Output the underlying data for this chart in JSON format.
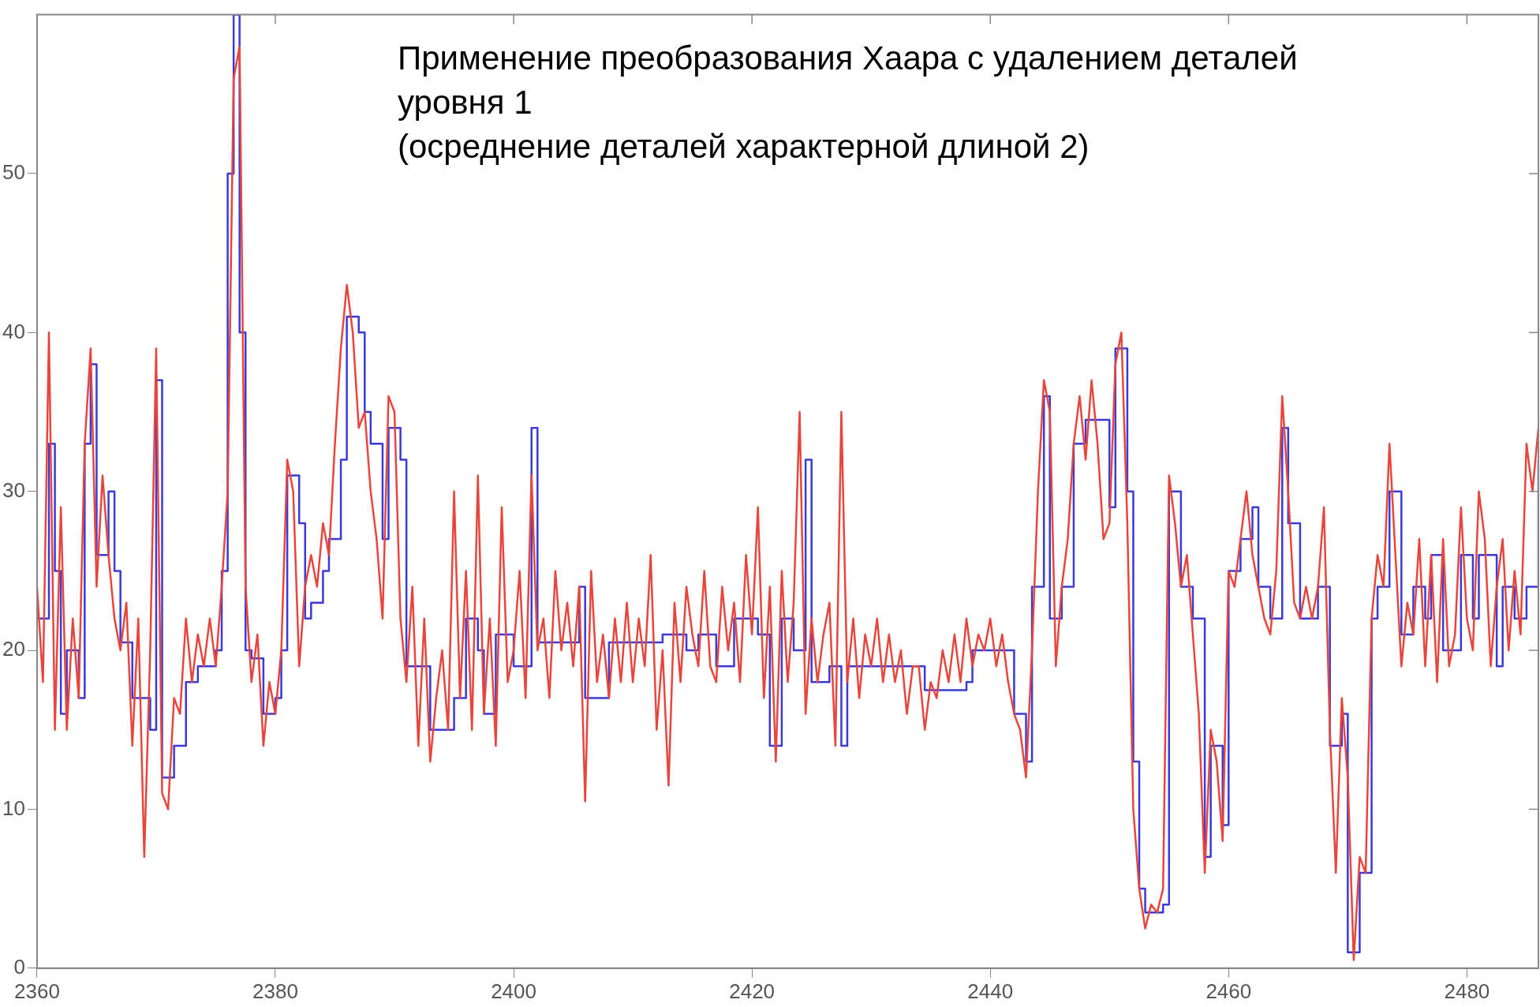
{
  "chart_data": {
    "type": "line",
    "title": "Применение преобразования Хаара с удалением деталей\nуровня 1\n(осреднение деталей характерной длиной 2)",
    "xlim": [
      2360,
      2486
    ],
    "xticks": [
      2360,
      2380,
      2400,
      2420,
      2440,
      2460,
      2480
    ],
    "ylim": [
      0,
      60
    ],
    "yticks": [
      0,
      10,
      20,
      30,
      40,
      50
    ],
    "grid": false,
    "legend": false,
    "marker": "none",
    "series": [
      {
        "color": "#e8453c",
        "x": [
          2360,
          2360.5,
          2361,
          2361.5,
          2362,
          2362.5,
          2363,
          2363.5,
          2364,
          2364.5,
          2365,
          2365.5,
          2366,
          2366.5,
          2367,
          2367.5,
          2368,
          2368.5,
          2369,
          2369.5,
          2370,
          2370.5,
          2371,
          2371.5,
          2372,
          2372.5,
          2373,
          2373.5,
          2374,
          2374.5,
          2375,
          2375.5,
          2376,
          2376.5,
          2377,
          2377.5,
          2378,
          2378.5,
          2379,
          2379.5,
          2380,
          2380.5,
          2381,
          2381.5,
          2382,
          2382.5,
          2383,
          2383.5,
          2384,
          2384.5,
          2385,
          2385.5,
          2386,
          2386.5,
          2387,
          2387.5,
          2388,
          2388.5,
          2389,
          2389.5,
          2390,
          2390.5,
          2391,
          2391.5,
          2392,
          2392.5,
          2393,
          2393.5,
          2394,
          2394.5,
          2395,
          2395.5,
          2396,
          2396.5,
          2397,
          2397.5,
          2398,
          2398.5,
          2399,
          2399.5,
          2400,
          2400.5,
          2401,
          2401.5,
          2402,
          2402.5,
          2403,
          2403.5,
          2404,
          2404.5,
          2405,
          2405.5,
          2406,
          2406.5,
          2407,
          2407.5,
          2408,
          2408.5,
          2409,
          2409.5,
          2410,
          2410.5,
          2411,
          2411.5,
          2412,
          2412.5,
          2413,
          2413.5,
          2414,
          2414.5,
          2415,
          2415.5,
          2416,
          2416.5,
          2417,
          2417.5,
          2418,
          2418.5,
          2419,
          2419.5,
          2420,
          2420.5,
          2421,
          2421.5,
          2422,
          2422.5,
          2423,
          2423.5,
          2424,
          2424.5,
          2425,
          2425.5,
          2426,
          2426.5,
          2427,
          2427.5,
          2428,
          2428.5,
          2429,
          2429.5,
          2430,
          2430.5,
          2431,
          2431.5,
          2432,
          2432.5,
          2433,
          2433.5,
          2434,
          2434.5,
          2435,
          2435.5,
          2436,
          2436.5,
          2437,
          2437.5,
          2438,
          2438.5,
          2439,
          2439.5,
          2440,
          2440.5,
          2441,
          2441.5,
          2442,
          2442.5,
          2443,
          2443.5,
          2444,
          2444.5,
          2445,
          2445.5,
          2446,
          2446.5,
          2447,
          2447.5,
          2448,
          2448.5,
          2449,
          2449.5,
          2450,
          2450.5,
          2451,
          2451.5,
          2452,
          2452.5,
          2453,
          2453.5,
          2454,
          2454.5,
          2455,
          2455.5,
          2456,
          2456.5,
          2457,
          2457.5,
          2458,
          2458.5,
          2459,
          2459.5,
          2460,
          2460.5,
          2461,
          2461.5,
          2462,
          2462.5,
          2463,
          2463.5,
          2464,
          2464.5,
          2465,
          2465.5,
          2466,
          2466.5,
          2467,
          2467.5,
          2468,
          2468.5,
          2469,
          2469.5,
          2470,
          2470.5,
          2471,
          2471.5,
          2472,
          2472.5,
          2473,
          2473.5,
          2474,
          2474.5,
          2475,
          2475.5,
          2476,
          2476.5,
          2477,
          2477.5,
          2478,
          2478.5,
          2479,
          2479.5,
          2480,
          2480.5,
          2481,
          2481.5,
          2482,
          2482.5,
          2483,
          2483.5,
          2484,
          2484.5,
          2485,
          2485.5,
          2486
        ],
        "values": [
          24,
          18,
          40,
          15,
          29,
          15,
          22,
          17,
          33,
          39,
          24,
          31,
          26,
          22,
          20,
          23,
          14,
          22,
          7,
          20,
          39,
          11,
          10,
          17,
          16,
          22,
          18,
          21,
          19,
          22,
          19,
          24,
          30,
          56,
          58,
          24,
          18,
          21,
          14,
          18,
          16,
          20,
          32,
          30,
          19,
          24,
          26,
          24,
          28,
          26,
          33,
          39,
          43,
          40,
          34,
          35,
          30,
          27,
          22,
          36,
          35,
          22,
          18,
          24,
          14,
          22,
          13,
          17,
          20,
          15,
          30,
          17,
          25,
          15,
          31,
          16,
          22,
          14,
          29,
          18,
          20,
          25,
          17,
          31,
          20,
          22,
          17,
          25,
          20,
          23,
          19,
          24,
          10.5,
          25,
          18,
          21,
          17,
          22,
          18,
          23,
          18,
          22,
          19,
          26,
          15,
          20,
          11.5,
          23,
          18,
          24,
          21,
          19,
          25,
          19,
          18,
          24,
          20,
          23,
          18,
          26,
          21,
          29,
          17,
          24,
          13,
          25,
          18,
          23,
          35,
          16,
          22,
          18,
          21,
          23,
          14,
          35,
          18,
          22,
          17,
          21,
          19,
          22,
          18,
          21,
          18,
          20,
          16,
          19,
          19,
          15,
          18,
          17,
          20,
          18,
          21,
          18,
          22,
          19,
          21,
          20,
          22,
          19,
          21,
          18,
          16,
          15,
          12,
          20,
          30,
          37,
          35,
          19,
          24,
          27,
          33,
          36,
          32,
          37,
          33,
          27,
          28,
          38,
          40,
          28,
          10,
          5,
          2.5,
          4,
          3.5,
          5,
          31,
          28,
          24,
          26,
          21,
          16,
          6,
          15,
          13,
          8,
          25,
          24,
          27,
          30,
          26,
          24,
          22,
          21,
          25,
          36,
          30,
          23,
          22,
          24,
          22,
          24,
          29,
          15,
          6,
          17,
          12,
          0.5,
          7,
          6,
          22,
          26,
          24,
          33,
          26,
          19,
          23,
          21,
          27,
          19,
          26,
          18,
          27,
          19,
          21,
          29,
          22,
          20,
          30,
          27,
          19,
          24,
          27,
          20,
          25,
          21,
          33,
          30,
          34
        ]
      },
      {
        "color": "#3a3ad8",
        "type": "step",
        "x": [
          2360,
          2361,
          2361.5,
          2362,
          2362.5,
          2363.5,
          2364,
          2364.5,
          2365,
          2366,
          2366.5,
          2367,
          2368,
          2369.5,
          2370,
          2370.5,
          2371.5,
          2372.5,
          2373.5,
          2375,
          2375.5,
          2376,
          2376.5,
          2377,
          2377.5,
          2378,
          2379,
          2380,
          2380.5,
          2381,
          2382,
          2382.5,
          2383,
          2384,
          2384.5,
          2385.5,
          2386,
          2387,
          2387.5,
          2388,
          2389,
          2389.5,
          2390.5,
          2391,
          2392.5,
          2393,
          2395,
          2396,
          2397,
          2397.5,
          2398.5,
          2400,
          2401.5,
          2402,
          2404,
          2405.5,
          2406,
          2408,
          2410.5,
          2412.5,
          2414.5,
          2415.5,
          2417,
          2418.5,
          2420.5,
          2421.5,
          2422.5,
          2423.5,
          2424.5,
          2425,
          2426.5,
          2427.5,
          2428,
          2431,
          2434.5,
          2438,
          2438.5,
          2441.5,
          2442,
          2443,
          2443.5,
          2444.5,
          2445,
          2446,
          2447,
          2448,
          2449,
          2450,
          2450.5,
          2451.5,
          2452,
          2452.5,
          2453,
          2454.5,
          2455,
          2456,
          2457,
          2458,
          2458.5,
          2459.5,
          2460,
          2461,
          2462,
          2462.5,
          2463.5,
          2464.5,
          2465,
          2466,
          2467.5,
          2468.5,
          2469.5,
          2470,
          2471,
          2472,
          2472.5,
          2473.5,
          2474.5,
          2475.5,
          2476.5,
          2477,
          2478,
          2479.5,
          2480.5,
          2481,
          2482.5,
          2483,
          2484,
          2485,
          2486
        ],
        "values": [
          22,
          33,
          25,
          16,
          20,
          17,
          33,
          38,
          26,
          30,
          25,
          20.5,
          17,
          15,
          37,
          12,
          14,
          18,
          19,
          20,
          25,
          50,
          60,
          40,
          20,
          19.5,
          16,
          17,
          20,
          31,
          28,
          22,
          23,
          25,
          27,
          32,
          41,
          40,
          35,
          33,
          27,
          34,
          32,
          19,
          19,
          15,
          17,
          22,
          20,
          16,
          21,
          19,
          34,
          20.5,
          20.5,
          24,
          17,
          20.5,
          20.5,
          21,
          20,
          21,
          19,
          22,
          21,
          14,
          22,
          20,
          32,
          18,
          19,
          14,
          19,
          19,
          17.5,
          18,
          20,
          20,
          16,
          13,
          24,
          36,
          22,
          24,
          33,
          34.5,
          34.5,
          29,
          39,
          30,
          13,
          5,
          3.5,
          4,
          30,
          24,
          22,
          7,
          14,
          9,
          25,
          27,
          29,
          24,
          22,
          34,
          28,
          22,
          24,
          14,
          16,
          1,
          6,
          22,
          24,
          30,
          21,
          24,
          22,
          26,
          20,
          26,
          22,
          26,
          19,
          24,
          22,
          24,
          32
        ]
      }
    ]
  }
}
